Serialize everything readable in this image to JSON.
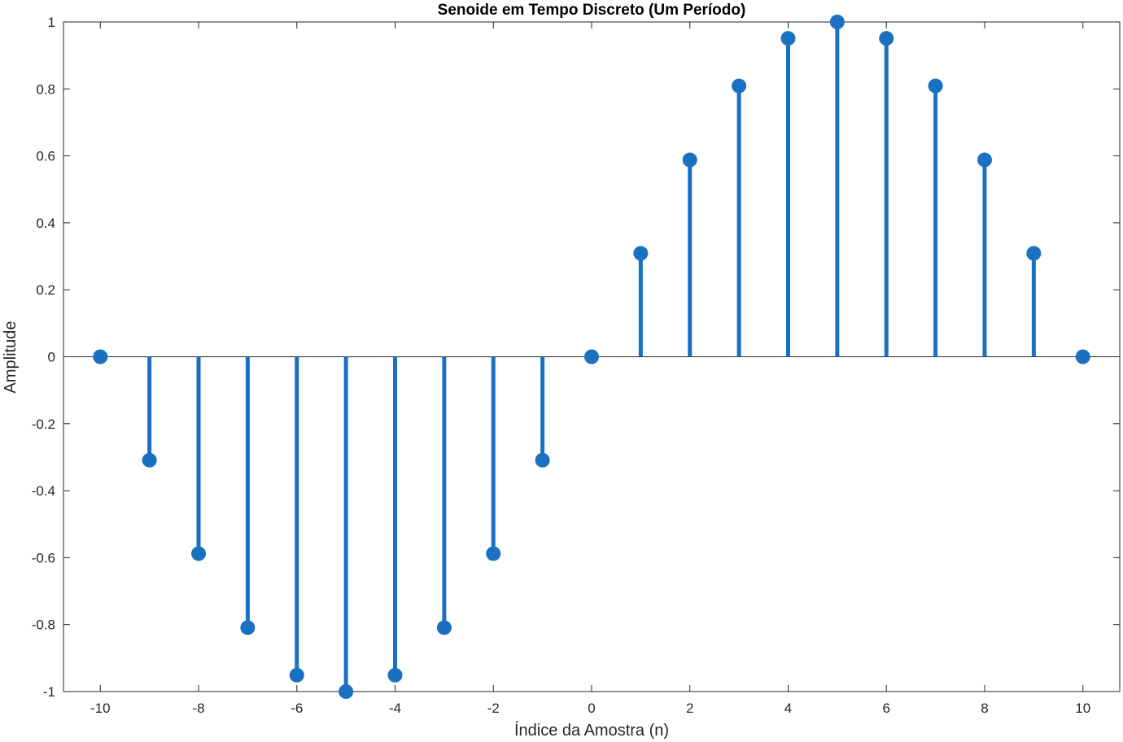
{
  "chart_data": {
    "type": "stem",
    "title": "Senoide em Tempo Discreto (Um Período)",
    "xlabel": "Índice da Amostra (n)",
    "ylabel": "Amplitude",
    "x": [
      -10,
      -9,
      -8,
      -7,
      -6,
      -5,
      -4,
      -3,
      -2,
      -1,
      0,
      1,
      2,
      3,
      4,
      5,
      6,
      7,
      8,
      9,
      10
    ],
    "y": [
      0,
      -0.309,
      -0.588,
      -0.809,
      -0.951,
      -1,
      -0.951,
      -0.809,
      -0.588,
      -0.309,
      0,
      0.309,
      0.588,
      0.809,
      0.951,
      1,
      0.951,
      0.809,
      0.588,
      0.309,
      0
    ],
    "xlim": [
      -10.75,
      10.75
    ],
    "ylim": [
      -1,
      1
    ],
    "xticks": [
      -10,
      -8,
      -6,
      -4,
      -2,
      0,
      2,
      4,
      6,
      8,
      10
    ],
    "yticks": [
      -1,
      -0.8,
      -0.6,
      -0.4,
      -0.2,
      0,
      0.2,
      0.4,
      0.6,
      0.8,
      1
    ],
    "xtick_labels": [
      "-10",
      "-8",
      "-6",
      "-4",
      "-2",
      "0",
      "2",
      "4",
      "6",
      "8",
      "10"
    ],
    "ytick_labels": [
      "-1",
      "-0.8",
      "-0.6",
      "-0.4",
      "-0.2",
      "0",
      "0.2",
      "0.4",
      "0.6",
      "0.8",
      "1"
    ],
    "grid": false,
    "colors": {
      "stem": "#1a70c1",
      "axis": "#262626",
      "baseline": "#262626"
    }
  }
}
